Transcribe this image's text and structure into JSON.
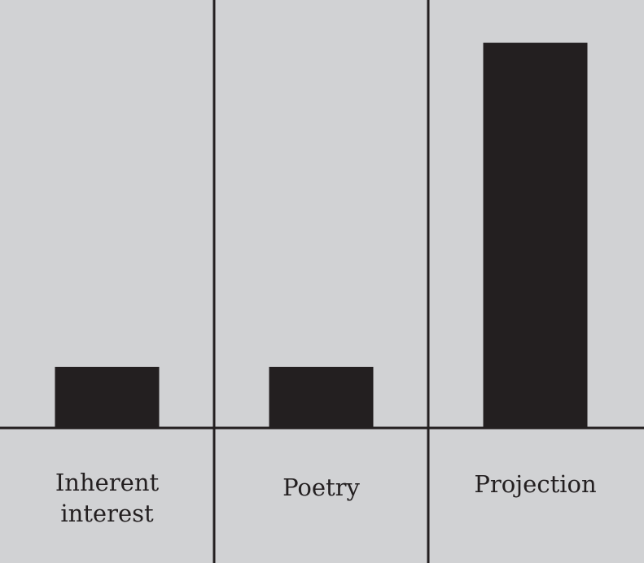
{
  "chart_data": {
    "type": "bar",
    "title": "",
    "xlabel": "",
    "ylabel": "",
    "categories": [
      "Inherent\ninterest",
      "Poetry",
      "Projection"
    ],
    "values": [
      1,
      1,
      6.3
    ],
    "ylim": [
      0,
      7
    ],
    "grid": false,
    "legend": "none",
    "colors": {
      "background": "#d1d2d4",
      "bar": "#231f20",
      "rule": "#231f20"
    }
  }
}
